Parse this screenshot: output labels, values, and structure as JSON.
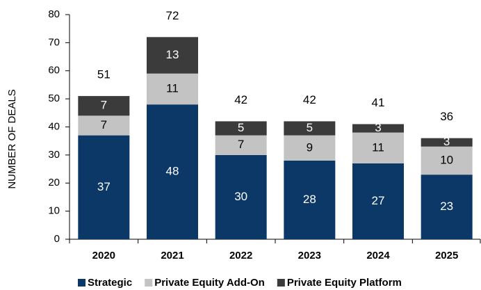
{
  "chart_data": {
    "type": "stacked_bar",
    "y_label": "NUMBER OF DEALS",
    "categories": [
      "2020",
      "2021",
      "2022",
      "2023",
      "2024",
      "2025"
    ],
    "series": [
      {
        "name": "Strategic",
        "color": "#0b3866",
        "label_color": "#ffffff",
        "values": [
          37,
          48,
          30,
          28,
          27,
          23
        ]
      },
      {
        "name": "Private Equity Add-On",
        "color": "#c3c3c3",
        "label_color": "#000000",
        "values": [
          7,
          11,
          7,
          9,
          11,
          10
        ]
      },
      {
        "name": "Private Equity Platform",
        "color": "#3b3b3b",
        "label_color": "#ffffff",
        "values": [
          7,
          13,
          5,
          5,
          3,
          3
        ]
      }
    ],
    "totals": [
      51,
      72,
      42,
      42,
      41,
      36
    ],
    "ylim": [
      0,
      80
    ],
    "yticks": [
      0,
      10,
      20,
      30,
      40,
      50,
      60,
      70,
      80
    ],
    "legend": "bottom"
  }
}
